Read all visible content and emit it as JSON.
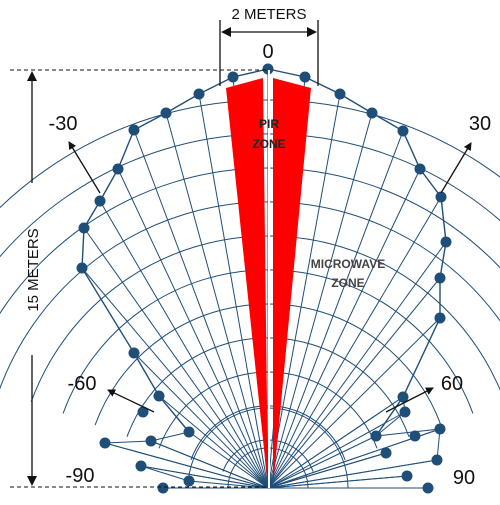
{
  "width_label": "2 METERS",
  "range_label": "15 METERS",
  "angle_labels": {
    "a0": "0",
    "a_neg30": "-30",
    "a30": "30",
    "a_neg60": "-60",
    "a60": "60",
    "a_neg90": "-90",
    "a90": "90"
  },
  "pir_zone": {
    "line1": "PIR",
    "line2": "ZONE"
  },
  "microwave_zone": {
    "line1": "MICROWAVE",
    "line2": "ZONE"
  },
  "colors": {
    "grid_line": "#1f4e79",
    "node": "#1f4e79",
    "pir_fill": "#ff0000",
    "dimension": "#111111"
  }
}
